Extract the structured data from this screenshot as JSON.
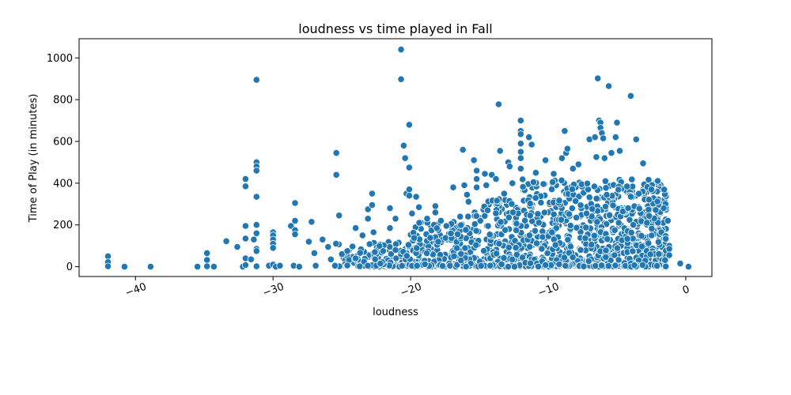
{
  "chart_data": {
    "type": "scatter",
    "title": "loudness vs time played in Fall",
    "xlabel": "loudness",
    "ylabel": "Time of Play (in minutes)",
    "xlim": [
      -44.1,
      1.9
    ],
    "ylim": [
      -47,
      1092
    ],
    "xticks": [
      -40,
      -30,
      -20,
      -10,
      0
    ],
    "xtick_labels": [
      "−40",
      "−30",
      "−20",
      "−10",
      "0"
    ],
    "yticks": [
      0,
      200,
      400,
      600,
      800,
      1000
    ],
    "ytick_labels": [
      "0",
      "200",
      "400",
      "600",
      "800",
      "1000"
    ],
    "grid": false,
    "legend": "none",
    "marker_color": "#1f77b4",
    "marker_edge_color": "#ffffff",
    "points": [
      {
        "x": -42,
        "y": 50
      },
      {
        "x": -42,
        "y": 22
      },
      {
        "x": -42,
        "y": 2
      },
      {
        "x": -40.8,
        "y": 0
      },
      {
        "x": -38.9,
        "y": 0
      },
      {
        "x": -35.5,
        "y": 0
      },
      {
        "x": -34.8,
        "y": 65
      },
      {
        "x": -34.8,
        "y": 32
      },
      {
        "x": -34.8,
        "y": 2
      },
      {
        "x": -34.3,
        "y": 0
      },
      {
        "x": -33.4,
        "y": 122
      },
      {
        "x": -32.6,
        "y": 95
      },
      {
        "x": -32.2,
        "y": 0
      },
      {
        "x": -32,
        "y": 420
      },
      {
        "x": -32,
        "y": 385
      },
      {
        "x": -32,
        "y": 195
      },
      {
        "x": -32,
        "y": 135
      },
      {
        "x": -32,
        "y": 40
      },
      {
        "x": -32,
        "y": 8
      },
      {
        "x": -31.6,
        "y": 35
      },
      {
        "x": -31.4,
        "y": 130
      },
      {
        "x": -31.2,
        "y": 895
      },
      {
        "x": -31.2,
        "y": 500
      },
      {
        "x": -31.2,
        "y": 480
      },
      {
        "x": -31.2,
        "y": 460
      },
      {
        "x": -31.2,
        "y": 335
      },
      {
        "x": -31.2,
        "y": 200
      },
      {
        "x": -31.2,
        "y": 160
      },
      {
        "x": -31.2,
        "y": 85
      },
      {
        "x": -31.2,
        "y": 75
      },
      {
        "x": -31.2,
        "y": 2
      },
      {
        "x": -30.3,
        "y": 5
      },
      {
        "x": -30,
        "y": 165
      },
      {
        "x": -30,
        "y": 150
      },
      {
        "x": -30,
        "y": 130
      },
      {
        "x": -30,
        "y": 110
      },
      {
        "x": -30,
        "y": 90
      },
      {
        "x": -30,
        "y": 10
      },
      {
        "x": -29.8,
        "y": 0
      },
      {
        "x": -29.5,
        "y": 5
      },
      {
        "x": -28.7,
        "y": 195
      },
      {
        "x": -28.4,
        "y": 305
      },
      {
        "x": -28.4,
        "y": 220
      },
      {
        "x": -28.4,
        "y": 175
      },
      {
        "x": -28.4,
        "y": 155
      },
      {
        "x": -28.5,
        "y": 5
      },
      {
        "x": -28.1,
        "y": 0
      },
      {
        "x": -27.4,
        "y": 120
      },
      {
        "x": -27.2,
        "y": 215
      },
      {
        "x": -27,
        "y": 65
      },
      {
        "x": -26.9,
        "y": 5
      },
      {
        "x": -26.4,
        "y": 130
      },
      {
        "x": -26,
        "y": 95
      },
      {
        "x": -25.8,
        "y": 35
      },
      {
        "x": -25.5,
        "y": 5
      },
      {
        "x": -25.4,
        "y": 545
      },
      {
        "x": -25.4,
        "y": 440
      },
      {
        "x": -25.2,
        "y": 245
      },
      {
        "x": -25,
        "y": 60
      },
      {
        "x": -24.6,
        "y": 75
      },
      {
        "x": -24,
        "y": 185
      },
      {
        "x": -24,
        "y": 40
      },
      {
        "x": -23.7,
        "y": 2
      },
      {
        "x": -23.5,
        "y": 150
      },
      {
        "x": -23.1,
        "y": 230
      },
      {
        "x": -23.1,
        "y": 275
      },
      {
        "x": -22.8,
        "y": 350
      },
      {
        "x": -22.8,
        "y": 295
      },
      {
        "x": -22.7,
        "y": 165
      },
      {
        "x": -22.6,
        "y": 70
      },
      {
        "x": -22.5,
        "y": 5
      },
      {
        "x": -22.2,
        "y": 15
      },
      {
        "x": -21.5,
        "y": 280
      },
      {
        "x": -21.5,
        "y": 185
      },
      {
        "x": -21.1,
        "y": 230
      },
      {
        "x": -20.7,
        "y": 1040
      },
      {
        "x": -20.7,
        "y": 898
      },
      {
        "x": -20.5,
        "y": 580
      },
      {
        "x": -20.4,
        "y": 520
      },
      {
        "x": -20.3,
        "y": 350
      },
      {
        "x": -20.1,
        "y": 680
      },
      {
        "x": -20.1,
        "y": 475
      },
      {
        "x": -20.1,
        "y": 370
      },
      {
        "x": -20.1,
        "y": 340
      },
      {
        "x": -19.9,
        "y": 255
      },
      {
        "x": -19.6,
        "y": 335
      },
      {
        "x": -19.4,
        "y": 285
      },
      {
        "x": -18.8,
        "y": 230
      },
      {
        "x": -18.2,
        "y": 290
      },
      {
        "x": -18.2,
        "y": 260
      },
      {
        "x": -17.8,
        "y": 220
      },
      {
        "x": -17.4,
        "y": 195
      },
      {
        "x": -16.9,
        "y": 380
      },
      {
        "x": -16.4,
        "y": 240
      },
      {
        "x": -16.2,
        "y": 560
      },
      {
        "x": -16.1,
        "y": 390
      },
      {
        "x": -15.9,
        "y": 345
      },
      {
        "x": -15.4,
        "y": 510
      },
      {
        "x": -15.2,
        "y": 460
      },
      {
        "x": -15.2,
        "y": 420
      },
      {
        "x": -15.2,
        "y": 380
      },
      {
        "x": -14.6,
        "y": 445
      },
      {
        "x": -14.5,
        "y": 390
      },
      {
        "x": -14.4,
        "y": 270
      },
      {
        "x": -14.1,
        "y": 440
      },
      {
        "x": -13.8,
        "y": 420
      },
      {
        "x": -13.6,
        "y": 778
      },
      {
        "x": -13.5,
        "y": 555
      },
      {
        "x": -13.2,
        "y": 350
      },
      {
        "x": -12.9,
        "y": 500
      },
      {
        "x": -12.8,
        "y": 480
      },
      {
        "x": -12.6,
        "y": 400
      },
      {
        "x": -12,
        "y": 700
      },
      {
        "x": -12,
        "y": 650
      },
      {
        "x": -12,
        "y": 635
      },
      {
        "x": -12,
        "y": 590
      },
      {
        "x": -12,
        "y": 550
      },
      {
        "x": -12,
        "y": 520
      },
      {
        "x": -12,
        "y": 470
      },
      {
        "x": -11.4,
        "y": 620
      },
      {
        "x": -11.2,
        "y": 585
      },
      {
        "x": -10.9,
        "y": 450
      },
      {
        "x": -10.2,
        "y": 510
      },
      {
        "x": -9.6,
        "y": 445
      },
      {
        "x": -9,
        "y": 520
      },
      {
        "x": -8.8,
        "y": 650
      },
      {
        "x": -8.7,
        "y": 545
      },
      {
        "x": -8.6,
        "y": 565
      },
      {
        "x": -8.2,
        "y": 470
      },
      {
        "x": -7.8,
        "y": 490
      },
      {
        "x": -7,
        "y": 610
      },
      {
        "x": -6.6,
        "y": 620
      },
      {
        "x": -6.5,
        "y": 525
      },
      {
        "x": -6.4,
        "y": 902
      },
      {
        "x": -6.3,
        "y": 700
      },
      {
        "x": -6.2,
        "y": 690
      },
      {
        "x": -6.2,
        "y": 665
      },
      {
        "x": -6.1,
        "y": 640
      },
      {
        "x": -6,
        "y": 615
      },
      {
        "x": -5.9,
        "y": 520
      },
      {
        "x": -5.6,
        "y": 865
      },
      {
        "x": -5.4,
        "y": 545
      },
      {
        "x": -5.1,
        "y": 620
      },
      {
        "x": -5,
        "y": 690
      },
      {
        "x": -4.8,
        "y": 555
      },
      {
        "x": -4,
        "y": 818
      },
      {
        "x": -3.6,
        "y": 610
      },
      {
        "x": -3.1,
        "y": 495
      },
      {
        "x": -2.5,
        "y": 370
      },
      {
        "x": -1.6,
        "y": 280
      },
      {
        "x": -1.3,
        "y": 220
      },
      {
        "x": -1.2,
        "y": 100
      },
      {
        "x": -1.2,
        "y": 85
      },
      {
        "x": -1.2,
        "y": 55
      },
      {
        "x": -0.4,
        "y": 15
      },
      {
        "x": 0.2,
        "y": 0
      }
    ],
    "dense_region": {
      "x_range": [
        -26,
        -1.4
      ],
      "y_range": [
        0,
        480
      ],
      "note": "many overlapping points; densest between loudness -16 and -2 and time 0–420"
    }
  }
}
